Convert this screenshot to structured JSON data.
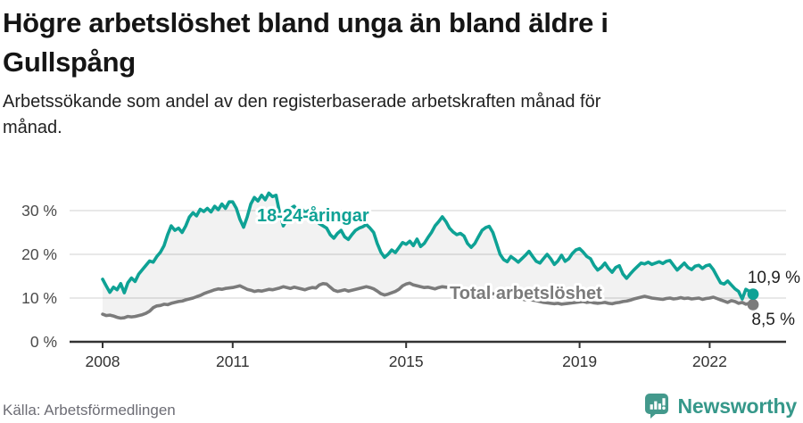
{
  "header": {
    "title_line1": "Högre arbetslöshet bland unga än bland äldre i",
    "title_line2": "Gullspång",
    "subtitle_line1": "Arbetssökande som andel av den registerbaserade arbetskraften månad för",
    "subtitle_line2": "månad."
  },
  "footer": {
    "source": "Källa: Arbetsförmedlingen",
    "brand": "Newsworthy",
    "brand_icon": "newsworthy-speech-bubble-bar-chart-icon"
  },
  "colors": {
    "youth_line": "#0ea295",
    "total_line": "#7b7b7b",
    "grid": "#d9d9d9",
    "axis": "#333333",
    "fill_between": "rgba(0,0,0,0.05)",
    "brand_teal": "#36988a",
    "title_text": "#151515"
  },
  "chart_data": {
    "type": "line",
    "title": "Högre arbetslöshet bland unga än bland äldre i Gullspång",
    "subtitle": "Arbetssökande som andel av den registerbaserade arbetskraften månad för månad.",
    "unit": "%",
    "frequency": "monthly",
    "x_start": "2008-01",
    "x_end": "2023-01",
    "ylim": [
      0,
      35
    ],
    "grid": "horizontal",
    "y_ticks": [
      0,
      10,
      20,
      30
    ],
    "y_tick_labels": [
      "0 %",
      "10 %",
      "20 %",
      "30 %"
    ],
    "x_tick_years": [
      2008,
      2011,
      2015,
      2019,
      2022
    ],
    "x_tick_labels": [
      "2008",
      "2011",
      "2015",
      "2019",
      "2022"
    ],
    "series": [
      {
        "name": "18-24-åringar",
        "color": "#0ea295",
        "end_value": 10.9,
        "end_label": "10,9 %",
        "values": [
          14.3,
          12.8,
          11.3,
          12.5,
          11.9,
          13.3,
          11.2,
          13.5,
          14.6,
          13.8,
          15.5,
          16.5,
          17.5,
          18.5,
          18.2,
          19.5,
          20.5,
          22.0,
          24.5,
          26.5,
          25.5,
          26.0,
          25.0,
          26.5,
          28.5,
          29.5,
          28.8,
          30.3,
          29.8,
          30.5,
          29.7,
          31.0,
          30.2,
          31.5,
          30.5,
          32.0,
          32.0,
          30.5,
          28.0,
          26.2,
          28.5,
          31.5,
          33.0,
          32.2,
          33.5,
          32.5,
          34.0,
          33.2,
          33.5,
          29.5,
          26.5,
          28.0,
          30.5,
          31.0,
          30.0,
          30.5,
          29.5,
          30.0,
          29.0,
          28.0,
          27.0,
          26.5,
          26.0,
          24.5,
          23.7,
          24.8,
          25.5,
          24.0,
          23.4,
          24.5,
          25.5,
          26.0,
          26.3,
          26.8,
          26.0,
          25.0,
          22.5,
          20.5,
          19.3,
          20.0,
          21.0,
          20.4,
          21.5,
          22.7,
          22.3,
          23.0,
          22.0,
          23.5,
          21.8,
          22.5,
          23.8,
          25.0,
          26.5,
          27.5,
          28.6,
          27.5,
          26.0,
          25.1,
          24.5,
          24.8,
          24.2,
          22.5,
          21.6,
          22.5,
          24.0,
          25.5,
          26.1,
          26.4,
          25.0,
          22.5,
          20.0,
          18.8,
          18.3,
          19.5,
          18.9,
          18.2,
          19.0,
          19.8,
          20.7,
          19.5,
          18.4,
          18.0,
          19.0,
          20.0,
          19.0,
          17.7,
          18.5,
          19.8,
          18.4,
          19.0,
          20.2,
          21.0,
          21.3,
          20.5,
          19.5,
          19.0,
          17.5,
          16.4,
          17.0,
          18.0,
          16.8,
          15.9,
          17.0,
          17.4,
          15.5,
          14.5,
          15.5,
          16.4,
          17.2,
          18.0,
          17.8,
          18.2,
          17.7,
          18.0,
          18.3,
          17.9,
          18.4,
          18.6,
          17.5,
          16.4,
          17.2,
          18.0,
          17.0,
          16.5,
          17.3,
          17.5,
          16.8,
          17.4,
          17.6,
          16.5,
          15.0,
          13.5,
          13.2,
          13.9,
          13.0,
          12.1,
          11.5,
          9.8,
          12.0,
          11.5,
          10.9
        ]
      },
      {
        "name": "Total arbetslöshet",
        "color": "#7b7b7b",
        "end_value": 8.5,
        "end_label": "8,5 %",
        "values": [
          6.3,
          6.0,
          6.1,
          5.9,
          5.6,
          5.4,
          5.5,
          5.8,
          5.7,
          5.8,
          6.0,
          6.2,
          6.5,
          7.0,
          7.8,
          8.2,
          8.3,
          8.6,
          8.5,
          8.8,
          9.0,
          9.2,
          9.3,
          9.6,
          9.8,
          10.0,
          10.3,
          10.6,
          11.0,
          11.3,
          11.6,
          11.9,
          12.1,
          12.0,
          12.2,
          12.3,
          12.4,
          12.6,
          12.8,
          12.4,
          12.0,
          11.8,
          11.5,
          11.7,
          11.6,
          11.8,
          12.0,
          11.9,
          12.1,
          12.3,
          12.6,
          12.4,
          12.2,
          12.5,
          12.3,
          12.1,
          11.9,
          12.2,
          12.4,
          12.3,
          13.0,
          13.3,
          13.2,
          12.5,
          11.8,
          11.5,
          11.7,
          11.9,
          11.6,
          11.8,
          12.0,
          12.2,
          12.4,
          12.6,
          12.4,
          12.1,
          11.6,
          11.0,
          10.7,
          10.9,
          11.2,
          11.5,
          12.0,
          12.8,
          13.2,
          13.4,
          13.0,
          12.8,
          12.6,
          12.4,
          12.5,
          12.3,
          12.1,
          12.4,
          12.6,
          12.5,
          12.4,
          12.3,
          12.1,
          12.0,
          11.8,
          11.9,
          11.7,
          11.5,
          11.4,
          11.2,
          11.3,
          11.1,
          11.0,
          10.8,
          10.6,
          10.4,
          10.3,
          10.2,
          10.0,
          9.9,
          9.8,
          9.6,
          9.7,
          9.5,
          9.4,
          9.2,
          9.0,
          8.9,
          8.8,
          8.7,
          8.8,
          8.6,
          8.7,
          8.8,
          8.9,
          9.0,
          9.1,
          9.2,
          9.0,
          9.1,
          8.9,
          8.8,
          8.9,
          9.0,
          8.8,
          8.7,
          8.9,
          9.0,
          9.2,
          9.3,
          9.5,
          9.8,
          10.0,
          10.2,
          10.4,
          10.2,
          10.0,
          9.9,
          9.8,
          9.7,
          9.9,
          10.0,
          9.8,
          9.9,
          10.1,
          9.9,
          10.0,
          9.8,
          9.9,
          10.0,
          9.7,
          9.9,
          10.0,
          10.2,
          9.9,
          9.6,
          9.3,
          9.0,
          9.4,
          9.2,
          8.8,
          9.0,
          8.6,
          8.8,
          8.5
        ]
      }
    ],
    "legend_position": "inline-labels",
    "source": "Arbetsförmedlingen"
  }
}
